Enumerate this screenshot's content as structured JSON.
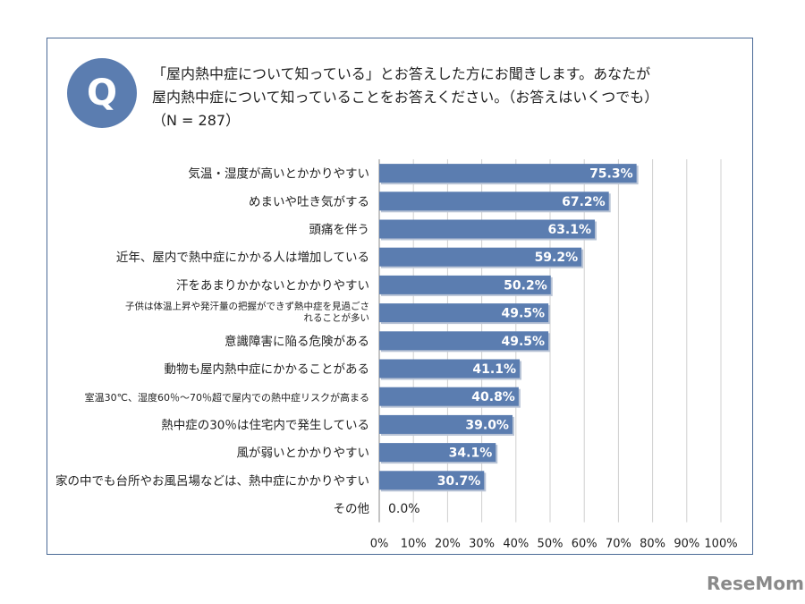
{
  "question": {
    "badge": "Q",
    "line1": "「屋内熱中症について知っている」とお答えした方にお聞きします。あなたが",
    "line2": "屋内熱中症について知っていることをお答えください。（お答えはいくつでも）",
    "line3": "（N = 287）"
  },
  "chart_data": {
    "type": "bar",
    "orientation": "horizontal",
    "categories": [
      "気温・湿度が高いとかかりやすい",
      "めまいや吐き気がする",
      "頭痛を伴う",
      "近年、屋内で熱中症にかかる人は増加している",
      "汗をあまりかかないとかかりやすい",
      "子供は体温上昇や発汗量の把握ができず熱中症を見過ごされることが多い",
      "意識障害に陥る危険がある",
      "動物も屋内熱中症にかかることがある",
      "室温30℃、湿度60％～70％超で屋内での熱中症リスクが高まる",
      "熱中症の30％は住宅内で発生している",
      "風が弱いとかかりやすい",
      "家の中でも台所やお風呂場などは、熱中症にかかりやすい",
      "その他"
    ],
    "category_lines": [
      [
        "気温・湿度が高いとかかりやすい"
      ],
      [
        "めまいや吐き気がする"
      ],
      [
        "頭痛を伴う"
      ],
      [
        "近年、屋内で熱中症にかかる人は増加している"
      ],
      [
        "汗をあまりかかないとかかりやすい"
      ],
      [
        "子供は体温上昇や発汗量の把握ができず熱中症を見過ごさ",
        "れることが多い"
      ],
      [
        "意識障害に陥る危険がある"
      ],
      [
        "動物も屋内熱中症にかかることがある"
      ],
      [
        "室温30℃、湿度60％～70％超で屋内での熱中症リスクが高まる"
      ],
      [
        "熱中症の30％は住宅内で発生している"
      ],
      [
        "風が弱いとかかりやすい"
      ],
      [
        "家の中でも台所やお風呂場などは、熱中症にかかりやすい"
      ],
      [
        "その他"
      ]
    ],
    "values": [
      75.3,
      67.2,
      63.1,
      59.2,
      50.2,
      49.5,
      49.5,
      41.1,
      40.8,
      39.0,
      34.1,
      30.7,
      0.0
    ],
    "value_labels": [
      "75.3%",
      "67.2%",
      "63.1%",
      "59.2%",
      "50.2%",
      "49.5%",
      "49.5%",
      "41.1%",
      "40.8%",
      "39.0%",
      "34.1%",
      "30.7%",
      "0.0%"
    ],
    "xticks": [
      "0%",
      "10%",
      "20%",
      "30%",
      "40%",
      "50%",
      "60%",
      "70%",
      "80%",
      "90%",
      "100%"
    ],
    "xlim": [
      0,
      100
    ],
    "grid": true,
    "bar_color": "#5b7db0",
    "title": "",
    "xlabel": "",
    "ylabel": ""
  },
  "logo": "ReseMom"
}
